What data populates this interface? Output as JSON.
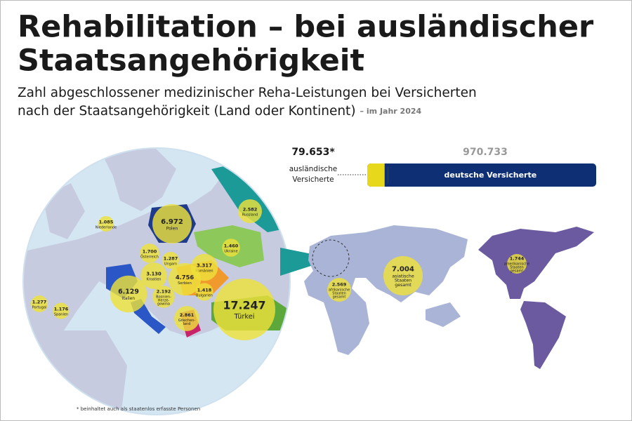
{
  "header": {
    "title_lines": [
      "Rehabilitation – bei ausländischer",
      "Staatsangehörigkeit"
    ],
    "subtitle_lines": [
      "Zahl abgeschlossener medizinischer Reha-Leistungen bei Versicherten",
      "nach der Staatsangehörigkeit (Land oder Kontinent)"
    ],
    "year_note": "– im Jahr 2024"
  },
  "comparison": {
    "foreign": {
      "value": 79653,
      "label": "79.653*",
      "name_lines": [
        "ausländische",
        "Versicherte"
      ],
      "color": "#e8d81c"
    },
    "german": {
      "value": 970733,
      "label": "970.733",
      "name": "deutsche Versicherte",
      "color": "#0f2f74"
    }
  },
  "bubbles": [
    {
      "name": [
        "Niederlande"
      ],
      "value": 1085,
      "label": "1.085"
    },
    {
      "name": [
        "Polen"
      ],
      "value": 6972,
      "label": "6.972"
    },
    {
      "name": [
        "Russland"
      ],
      "value": 2582,
      "label": "2.582"
    },
    {
      "name": [
        "Ukraine"
      ],
      "value": 1460,
      "label": "1.460"
    },
    {
      "name": [
        "Österreich"
      ],
      "value": 1700,
      "label": "1.700"
    },
    {
      "name": [
        "Ungarn"
      ],
      "value": 1287,
      "label": "1.287"
    },
    {
      "name": [
        "Rumänien"
      ],
      "value": 3317,
      "label": "3.317"
    },
    {
      "name": [
        "Kroatien"
      ],
      "value": 3130,
      "label": "3.130"
    },
    {
      "name": [
        "Serbien"
      ],
      "value": 4756,
      "label": "4.756"
    },
    {
      "name": [
        "Bosnien-",
        "Herze-",
        "gowina"
      ],
      "value": 2192,
      "label": "2.192"
    },
    {
      "name": [
        "Bulgarien"
      ],
      "value": 1418,
      "label": "1.418"
    },
    {
      "name": [
        "Italien"
      ],
      "value": 6129,
      "label": "6.129"
    },
    {
      "name": [
        "Türkei"
      ],
      "value": 17247,
      "label": "17.247"
    },
    {
      "name": [
        "Griechen-",
        "land"
      ],
      "value": 2861,
      "label": "2.861"
    },
    {
      "name": [
        "Portugal"
      ],
      "value": 1277,
      "label": "1.277"
    },
    {
      "name": [
        "Spanien"
      ],
      "value": 1176,
      "label": "1.176"
    },
    {
      "name": [
        "afrikanische",
        "Staaten",
        "gesamt"
      ],
      "value": 2569,
      "label": "2.569"
    },
    {
      "name": [
        "asiatische",
        "Staaten",
        "gesamt"
      ],
      "value": 7004,
      "label": "7.004"
    },
    {
      "name": [
        "amerikanische",
        "Staaten",
        "gesamt"
      ],
      "value": 1744,
      "label": "1.744"
    }
  ],
  "footnote": "* beinhaltet auch als staatenlos erfasste Personen"
}
